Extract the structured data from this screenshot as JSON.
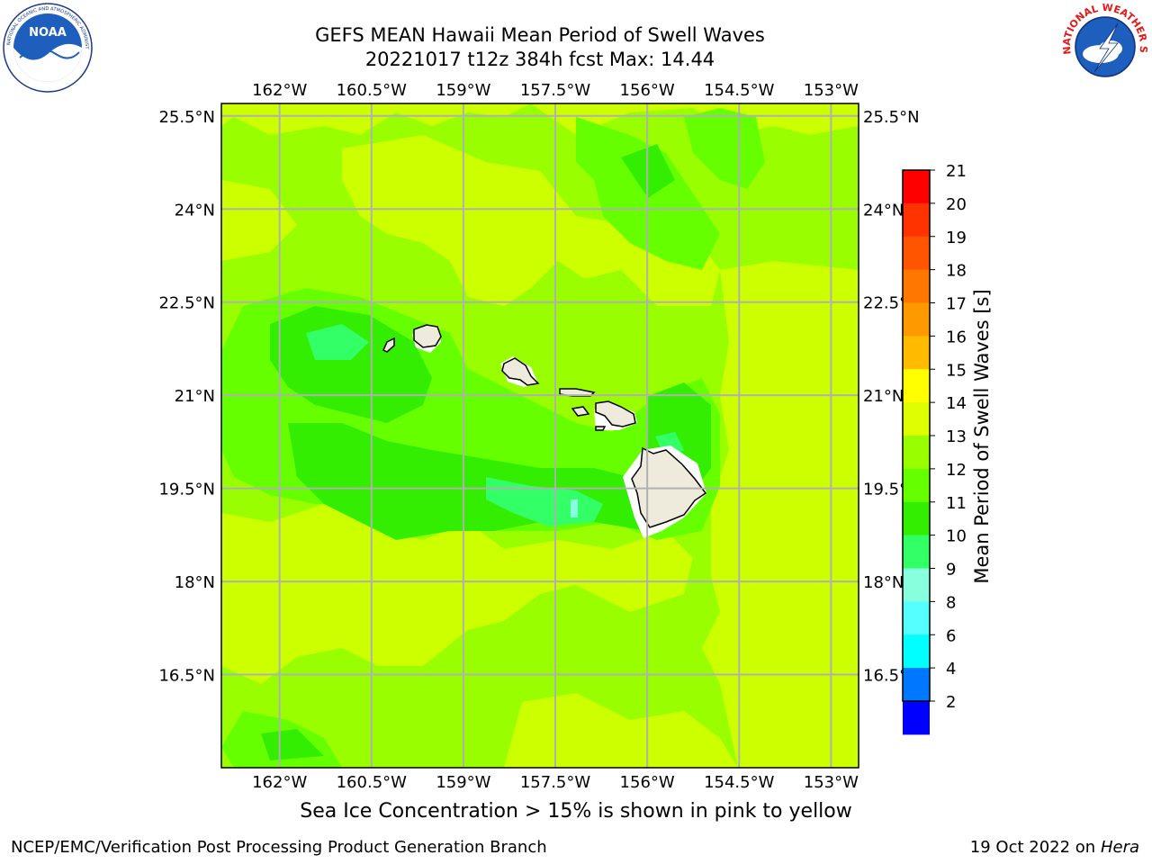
{
  "title": {
    "line1": "GEFS MEAN Hawaii Mean Period of Swell Waves",
    "line2": "20221017 t12z 384h fcst   Max: 14.44"
  },
  "logos": {
    "left": {
      "icon": "noaa-logo-icon",
      "text": "NOAA",
      "ring_text": "NATIONAL OCEANIC AND ATMOSPHERIC ADMINISTRATION · U.S. DEPARTMENT OF COMMERCE"
    },
    "right": {
      "icon": "nws-logo-icon",
      "ring_text": "NATIONAL WEATHER SERVICE"
    }
  },
  "map": {
    "lon_ticks": [
      "162°W",
      "160.5°W",
      "159°W",
      "157.5°W",
      "156°W",
      "154.5°W",
      "153°W"
    ],
    "lat_ticks": [
      "25.5°N",
      "24°N",
      "22.5°N",
      "21°N",
      "19.5°N",
      "18°N",
      "16.5°N"
    ],
    "lon_range_deg_west": [
      162.95,
      152.55
    ],
    "lat_range_deg_north": [
      15.0,
      25.7
    ],
    "gridlines": true,
    "field": "Mean Period of Swell Waves",
    "islands": [
      "Kauai",
      "Niihau",
      "Oahu",
      "Molokai",
      "Lanai",
      "Maui",
      "Kahoolawe",
      "Hawaii"
    ]
  },
  "colorbar": {
    "label": "Mean Period of Swell Waves [s]",
    "ticks": [
      "21",
      "20",
      "19",
      "18",
      "17",
      "16",
      "15",
      "14",
      "13",
      "12",
      "11",
      "10",
      "9",
      "8",
      "6",
      "4",
      "2"
    ],
    "colors": [
      "#ff0000",
      "#ff3300",
      "#ff5500",
      "#ff7700",
      "#ff9900",
      "#ffbb00",
      "#ffff00",
      "#ddff00",
      "#99ff00",
      "#66ff00",
      "#33ee00",
      "#33ff66",
      "#88ffdd",
      "#55ffff",
      "#00ffff",
      "#0077ff",
      "#0000ff"
    ]
  },
  "note": "Sea Ice Concentration > 15% is shown in pink to yellow",
  "footer": {
    "left": "NCEP/EMC/Verification Post Processing Product Generation Branch",
    "right_prefix": "19 Oct 2022 on ",
    "right_machine": "Hera"
  }
}
